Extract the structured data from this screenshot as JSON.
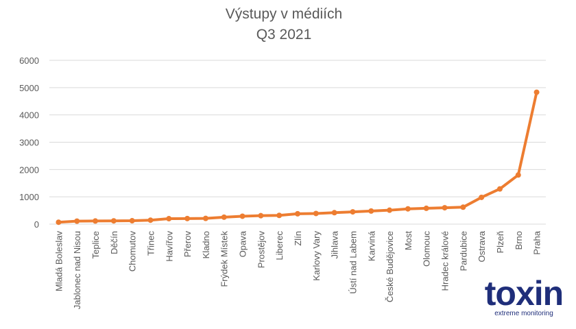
{
  "colors": {
    "series": "#ED7D31",
    "logo": "#1F2E7A"
  },
  "logo": {
    "name": "toxin",
    "tagline": "extreme monitoring"
  },
  "chart_data": {
    "type": "line",
    "title": "Výstupy v médiích",
    "subtitle": "Q3 2021",
    "xlabel": "",
    "ylabel": "",
    "ylim": [
      0,
      6000
    ],
    "yticks": [
      0,
      1000,
      2000,
      3000,
      4000,
      5000,
      6000
    ],
    "grid": true,
    "legend": "none",
    "categories": [
      "Mladá Boleslav",
      "Jablonec nad Nisou",
      "Teplice",
      "Děčín",
      "Chomutov",
      "Třinec",
      "Havířov",
      "Přerov",
      "Kladno",
      "Frýdek Místek",
      "Opava",
      "Prostějov",
      "Liberec",
      "Zlín",
      "Karlovy Vary",
      "Jihlava",
      "Ústí nad Labem",
      "Karviná",
      "České Budějovice",
      "Most",
      "Olomouc",
      "Hradec králové",
      "Pardubice",
      "Ostrava",
      "Plzeň",
      "Brno",
      "Praha"
    ],
    "series": [
      {
        "values": [
          70,
          110,
          115,
          120,
          125,
          145,
          200,
          205,
          210,
          255,
          290,
          310,
          320,
          380,
          390,
          420,
          450,
          480,
          510,
          560,
          580,
          600,
          620,
          980,
          1290,
          1800,
          4830
        ]
      }
    ]
  }
}
